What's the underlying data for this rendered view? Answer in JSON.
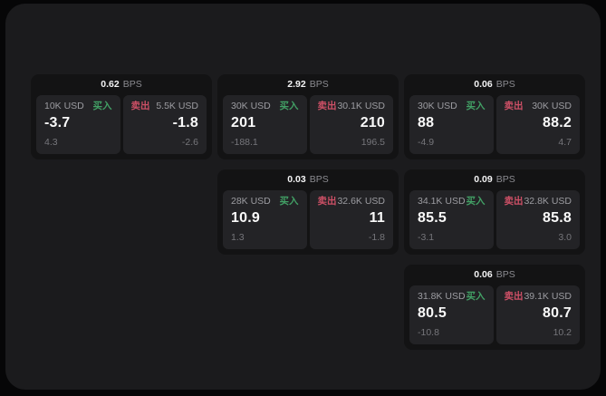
{
  "labels": {
    "bps_unit": "BPS",
    "buy": "买入",
    "sell": "卖出"
  },
  "colors": {
    "buy": "#42a065",
    "sell": "#cd5066",
    "panel_bg": "#1b1b1d",
    "card_bg": "#131314",
    "tile_bg": "#232326"
  },
  "cards": [
    {
      "bps": "0.62",
      "buy": {
        "size": "10K USD",
        "price": "-3.7",
        "sub": "4.3"
      },
      "sell": {
        "size": "5.5K USD",
        "price": "-1.8",
        "sub": "-2.6"
      }
    },
    {
      "bps": "2.92",
      "buy": {
        "size": "30K USD",
        "price": "201",
        "sub": "-188.1"
      },
      "sell": {
        "size": "30.1K USD",
        "price": "210",
        "sub": "196.5"
      }
    },
    {
      "bps": "0.06",
      "buy": {
        "size": "30K USD",
        "price": "88",
        "sub": "-4.9"
      },
      "sell": {
        "size": "30K USD",
        "price": "88.2",
        "sub": "4.7"
      }
    },
    {
      "bps": "0.03",
      "buy": {
        "size": "28K USD",
        "price": "10.9",
        "sub": "1.3"
      },
      "sell": {
        "size": "32.6K USD",
        "price": "11",
        "sub": "-1.8"
      }
    },
    {
      "bps": "0.09",
      "buy": {
        "size": "34.1K USD",
        "price": "85.5",
        "sub": "-3.1"
      },
      "sell": {
        "size": "32.8K USD",
        "price": "85.8",
        "sub": "3.0"
      }
    },
    {
      "bps": "0.06",
      "buy": {
        "size": "31.8K USD",
        "price": "80.5",
        "sub": "-10.8"
      },
      "sell": {
        "size": "39.1K USD",
        "price": "80.7",
        "sub": "10.2"
      }
    }
  ]
}
